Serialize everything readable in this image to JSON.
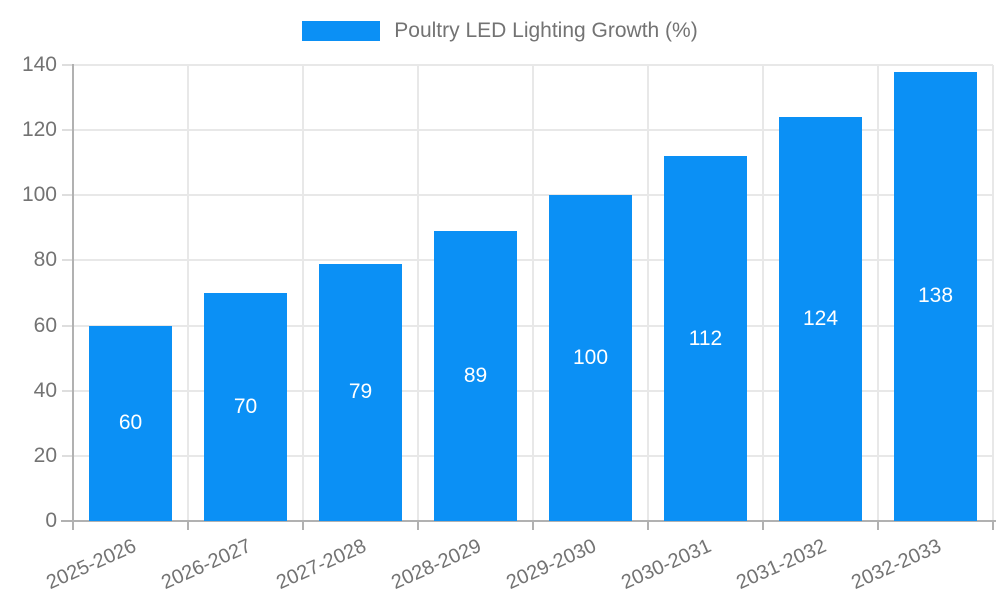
{
  "chart_data": {
    "type": "bar",
    "title": "Poultry LED Lighting Growth (%)",
    "categories": [
      "2025-2026",
      "2026-2027",
      "2027-2028",
      "2028-2029",
      "2029-2030",
      "2030-2031",
      "2031-2032",
      "2032-2033"
    ],
    "values": [
      60,
      70,
      79,
      89,
      100,
      112,
      124,
      138
    ],
    "value_labels": [
      "60",
      "70",
      "79",
      "89",
      "100",
      "112",
      "124",
      "138"
    ],
    "legend": {
      "label": "Poultry LED Lighting Growth (%)",
      "position": "top"
    },
    "xlabel": "",
    "ylabel": "",
    "ylim": [
      0,
      140
    ],
    "yticks": [
      0,
      20,
      40,
      60,
      80,
      100,
      120,
      140
    ],
    "grid": true,
    "colors": {
      "bar": "#0b90f5",
      "value_label": "#ffffff",
      "axis_text": "#737373",
      "gridline": "#e8e8e8",
      "axis_line": "#b1b1b1"
    }
  }
}
